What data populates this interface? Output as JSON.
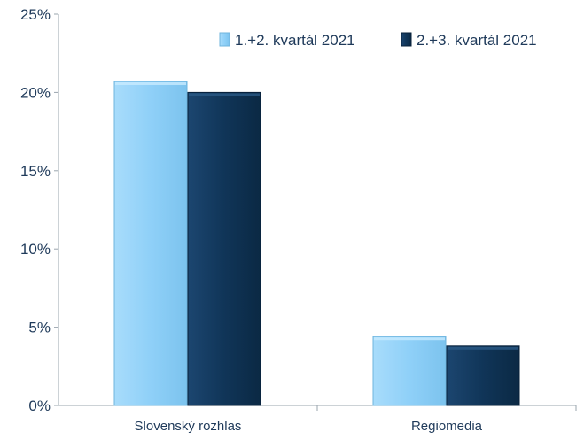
{
  "chart_data": {
    "type": "bar",
    "categories": [
      "Slovenský rozhlas",
      "Regiomedia"
    ],
    "series": [
      {
        "name": "1.+2. kvartál 2021",
        "values": [
          20.7,
          4.4
        ],
        "color": "#8fd0f8"
      },
      {
        "name": "2.+3. kvartál 2021",
        "values": [
          20.0,
          3.8
        ],
        "color": "#103558"
      }
    ],
    "ylim": [
      0,
      25
    ],
    "yticks": [
      "0%",
      "5%",
      "10%",
      "15%",
      "20%",
      "25%"
    ],
    "ytick_values": [
      0,
      5,
      10,
      15,
      20,
      25
    ],
    "legend_position": "top-right",
    "grid": false
  }
}
